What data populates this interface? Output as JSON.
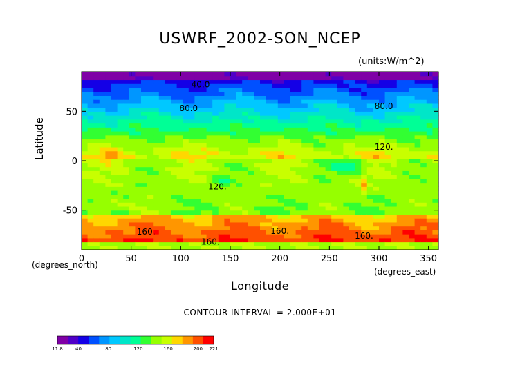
{
  "chart_data": {
    "type": "heatmap",
    "title": "USWRF_2002-SON_NCEP",
    "units": "(units:W/m^2)",
    "xlabel": "Longitude",
    "xlabel_sub": "(degrees_east)",
    "ylabel": "Latitude",
    "ylabel_sub": "(degrees_north)",
    "xlim": [
      0,
      360
    ],
    "ylim": [
      -90,
      90
    ],
    "x_ticks": [
      0,
      50,
      100,
      150,
      200,
      250,
      300,
      350
    ],
    "y_ticks": [
      -50,
      0,
      50
    ],
    "contour_interval_text": "CONTOUR INTERVAL = 2.000E+01",
    "colorbar": {
      "min": 11.8,
      "max": 221,
      "tick_labels": [
        "11.8",
        "40",
        "80",
        "120",
        "160",
        "200",
        "221"
      ],
      "tick_values": [
        11.8,
        40,
        80,
        120,
        160,
        200,
        221
      ]
    },
    "contour_labels": [
      {
        "text": "40.0",
        "lon": 120,
        "lat": 77
      },
      {
        "text": "80.0",
        "lon": 108,
        "lat": 53
      },
      {
        "text": "80.0",
        "lon": 305,
        "lat": 55
      },
      {
        "text": "120.",
        "lon": 305,
        "lat": 14
      },
      {
        "text": "120.",
        "lon": 137,
        "lat": -26
      },
      {
        "text": "160.",
        "lon": 65,
        "lat": -72
      },
      {
        "text": "160.",
        "lon": 200,
        "lat": -71
      },
      {
        "text": "160.",
        "lon": 130,
        "lat": -82
      },
      {
        "text": "160.",
        "lon": 285,
        "lat": -76
      }
    ]
  },
  "colors": {
    "palette": [
      "#7f00a6",
      "#5000c8",
      "#1400e6",
      "#0050ff",
      "#0096ff",
      "#00c8ff",
      "#00e6c8",
      "#00ff96",
      "#32ff32",
      "#96ff00",
      "#c8ff00",
      "#ffd700",
      "#ff9600",
      "#ff5000",
      "#ff0000"
    ]
  }
}
